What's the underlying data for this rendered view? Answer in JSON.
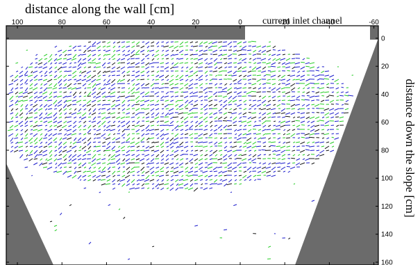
{
  "chart_data": {
    "type": "quiver",
    "title": "distance along the wall [cm]",
    "subtitle": "current inlet channel",
    "ylabel": "distance down the slope [cm]",
    "xlim": [
      105,
      -62
    ],
    "ylim": [
      0,
      162
    ],
    "x_ticks": [
      100,
      80,
      60,
      40,
      20,
      0,
      -20,
      -40,
      -60
    ],
    "x_tick_labels": [
      "100",
      "80",
      "60",
      "40",
      "20",
      "0",
      "-20",
      "-40",
      "-60"
    ],
    "y_ticks": [
      0,
      20,
      40,
      60,
      80,
      100,
      120,
      140,
      160
    ],
    "y_tick_labels": [
      "0",
      "20",
      "40",
      "60",
      "80",
      "100",
      "120",
      "140",
      "160"
    ],
    "series": [
      {
        "values": [],
        "color": "#1a1acc"
      },
      {
        "values": [],
        "color": "#22cc22"
      },
      {
        "values": [],
        "color": "#111111"
      }
    ],
    "masked_color": "#6b6b6b"
  }
}
